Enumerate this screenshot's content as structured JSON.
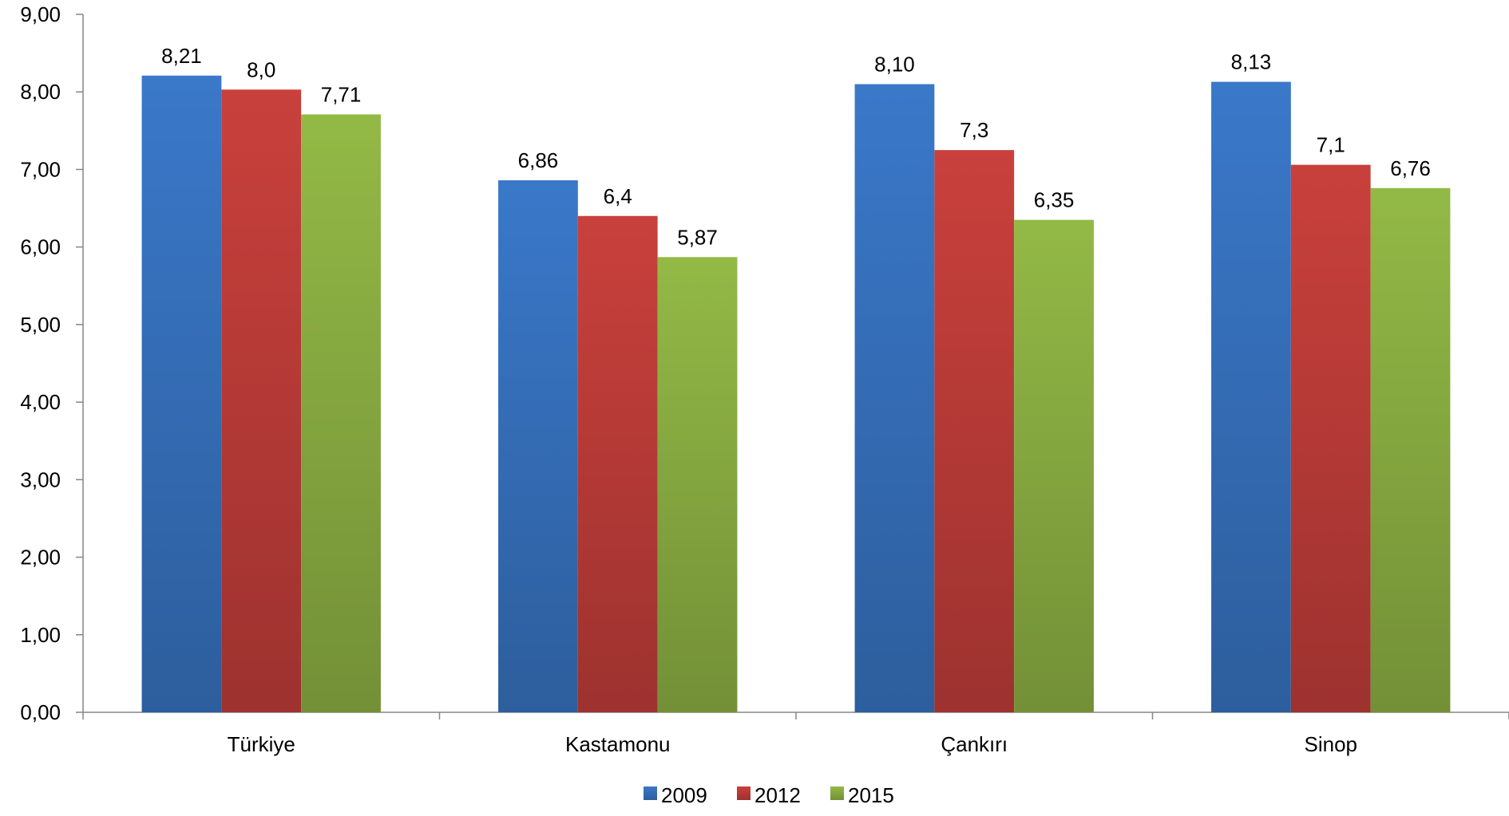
{
  "chart_data": {
    "type": "bar",
    "categories": [
      "Türkiye",
      "Kastamonu",
      "Çankırı",
      "Sinop"
    ],
    "series": [
      {
        "name": "2009",
        "values": [
          8.21,
          6.86,
          8.1,
          8.13
        ],
        "labels": [
          "8,21",
          "6,86",
          "8,10",
          "8,13"
        ],
        "color": "#3a78c9"
      },
      {
        "name": "2012",
        "values": [
          8.03,
          6.4,
          7.25,
          7.06
        ],
        "labels": [
          "8,0",
          "6,4",
          "7,3",
          "7,1"
        ],
        "color": "#c9403c"
      },
      {
        "name": "2015",
        "values": [
          7.71,
          5.87,
          6.35,
          6.76
        ],
        "labels": [
          "7,71",
          "5,87",
          "6,35",
          "6,76"
        ],
        "color": "#93b946"
      }
    ],
    "ylim": [
      0,
      9
    ],
    "yticks": [
      "0,00",
      "1,00",
      "2,00",
      "3,00",
      "4,00",
      "5,00",
      "6,00",
      "7,00",
      "8,00",
      "9,00"
    ],
    "grid": false,
    "legend_position": "bottom"
  }
}
